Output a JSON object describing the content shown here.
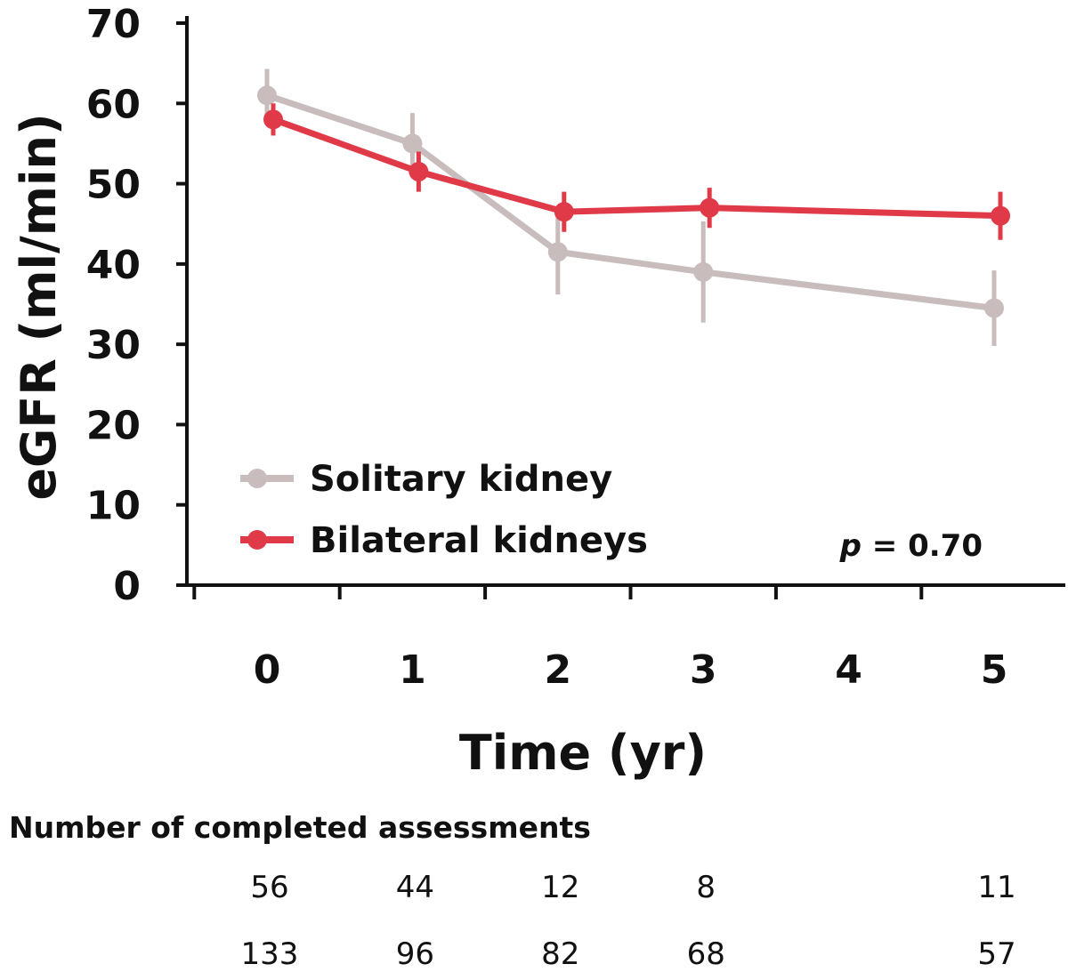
{
  "chart_data": {
    "type": "line",
    "xlabel": "Time (yr)",
    "ylabel": "eGFR (ml/min)",
    "ylim": [
      0,
      70
    ],
    "yticks": [
      0,
      10,
      20,
      30,
      40,
      50,
      60,
      70
    ],
    "xlim": [
      0,
      5
    ],
    "xticks": [
      0,
      1,
      2,
      3,
      4,
      5
    ],
    "grid": false,
    "legend_position": "bottom-left",
    "annotation": {
      "prefix": "p",
      "text": " = 0.70"
    },
    "series": [
      {
        "name": "Solitary kidney",
        "color": "#c8bcbc",
        "x": [
          0,
          1,
          2,
          3,
          5
        ],
        "y": [
          61,
          55,
          41.5,
          39,
          34.5
        ],
        "err": [
          3.3,
          3.8,
          5.3,
          6.3,
          4.7
        ]
      },
      {
        "name": "Bilateral kidneys",
        "color": "#e03a48",
        "x": [
          0,
          1,
          2,
          3,
          5
        ],
        "y": [
          58,
          51.5,
          46.5,
          47,
          46
        ],
        "err": [
          2,
          2.5,
          2.5,
          2.5,
          3
        ]
      }
    ]
  },
  "assessments": {
    "title": "Number of completed assessments",
    "rows": [
      {
        "x": [
          0,
          1,
          2,
          3,
          5
        ],
        "values": [
          "56",
          "44",
          "12",
          "8",
          "11"
        ]
      },
      {
        "x": [
          0,
          1,
          2,
          3,
          5
        ],
        "values": [
          "133",
          "96",
          "82",
          "68",
          "57"
        ]
      }
    ]
  }
}
